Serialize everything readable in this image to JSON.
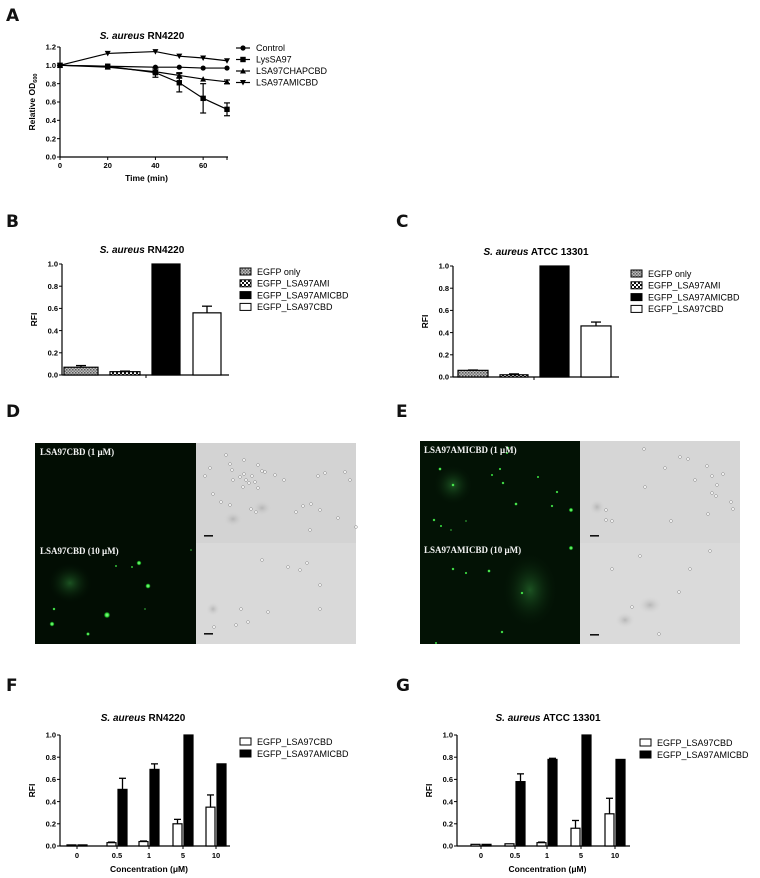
{
  "panels": {
    "A": {
      "letter": "A"
    },
    "B": {
      "letter": "B"
    },
    "C": {
      "letter": "C"
    },
    "D": {
      "letter": "D"
    },
    "E": {
      "letter": "E"
    },
    "F": {
      "letter": "F"
    },
    "G": {
      "letter": "G"
    }
  },
  "microscopy": {
    "D": {
      "top_label": "LSA97CBD (1 μM)",
      "bottom_label": "LSA97CBD (10 μM)"
    },
    "E": {
      "top_label": "LSA97AMICBD (1 μM)",
      "bottom_label": "LSA97AMICBD (10 μM)"
    }
  },
  "chart_data": [
    {
      "id": "A",
      "type": "line",
      "title_italic": "S. aureus",
      "title_rest": " RN4220",
      "xlabel": "Time (min)",
      "ylabel": "Relative OD600",
      "xlim": [
        0,
        70
      ],
      "ylim": [
        0,
        1.2
      ],
      "xticks": [
        0,
        20,
        40,
        60
      ],
      "yticks": [
        0.0,
        0.2,
        0.4,
        0.6,
        0.8,
        1.0,
        1.2
      ],
      "x": [
        0,
        20,
        40,
        50,
        60,
        70
      ],
      "series": [
        {
          "name": "Control",
          "marker": "circle",
          "values": [
            1.0,
            0.99,
            0.98,
            0.98,
            0.97,
            0.97
          ],
          "err": [
            0,
            0.01,
            0.01,
            0.01,
            0.01,
            0.01
          ]
        },
        {
          "name": "LysSA97",
          "marker": "square",
          "values": [
            1.0,
            0.99,
            0.92,
            0.81,
            0.64,
            0.52
          ],
          "err": [
            0,
            0.01,
            0.05,
            0.1,
            0.16,
            0.07
          ]
        },
        {
          "name": "LSA97CHAPCBD",
          "marker": "triangle-up",
          "values": [
            1.0,
            0.98,
            0.93,
            0.89,
            0.85,
            0.82
          ],
          "err": [
            0,
            0.01,
            0.02,
            0.03,
            0.01,
            0.02
          ]
        },
        {
          "name": "LSA97AMICBD",
          "marker": "triangle-down",
          "values": [
            1.0,
            1.13,
            1.15,
            1.1,
            1.08,
            1.05
          ],
          "err": [
            0,
            0.01,
            0.01,
            0.01,
            0.01,
            0.01
          ]
        }
      ]
    },
    {
      "id": "B",
      "type": "bar",
      "title_italic": "S. aureus",
      "title_rest": " RN4220",
      "ylabel": "RFI",
      "ylim": [
        0,
        1.0
      ],
      "yticks": [
        0.0,
        0.2,
        0.4,
        0.6,
        0.8,
        1.0
      ],
      "categories": [
        "EGFP only",
        "EGFP_LSA97AMI",
        "EGFP_LSA97AMICBD",
        "EGFP_LSA97CBD"
      ],
      "values": [
        0.07,
        0.03,
        1.0,
        0.56
      ],
      "err": [
        0.015,
        0.005,
        0,
        0.06
      ],
      "fills": [
        "hatch-gray",
        "checker",
        "black",
        "white"
      ]
    },
    {
      "id": "C",
      "type": "bar",
      "title_italic": "S. aureus",
      "title_rest": " ATCC 13301",
      "ylabel": "RFI",
      "ylim": [
        0,
        1.0
      ],
      "yticks": [
        0.0,
        0.2,
        0.4,
        0.6,
        0.8,
        1.0
      ],
      "categories": [
        "EGFP only",
        "EGFP_LSA97AMI",
        "EGFP_LSA97AMICBD",
        "EGFP_LSA97CBD"
      ],
      "values": [
        0.06,
        0.02,
        1.0,
        0.46
      ],
      "err": [
        0.003,
        0.008,
        0,
        0.035
      ],
      "fills": [
        "hatch-gray",
        "checker",
        "black",
        "white"
      ]
    },
    {
      "id": "F",
      "type": "bar",
      "title_italic": "S. aureus",
      "title_rest": " RN4220",
      "xlabel": "Concentration (μM)",
      "ylabel": "RFI",
      "ylim": [
        0,
        1.0
      ],
      "yticks": [
        0.0,
        0.2,
        0.4,
        0.6,
        0.8,
        1.0
      ],
      "categories": [
        "0",
        "0.5",
        "1",
        "5",
        "10"
      ],
      "series": [
        {
          "name": "EGFP_LSA97CBD",
          "fill": "white",
          "values": [
            0.01,
            0.03,
            0.04,
            0.2,
            0.35
          ],
          "err": [
            0,
            0.005,
            0.005,
            0.04,
            0.11
          ]
        },
        {
          "name": "EGFP_LSA97AMICBD",
          "fill": "black",
          "values": [
            0.01,
            0.51,
            0.69,
            1.0,
            0.74
          ],
          "err": [
            0,
            0.1,
            0.05,
            0,
            0
          ]
        }
      ]
    },
    {
      "id": "G",
      "type": "bar",
      "title_italic": "S. aureus",
      "title_rest": " ATCC 13301",
      "xlabel": "Concentration (μM)",
      "ylabel": "RFI",
      "ylim": [
        0,
        1.0
      ],
      "yticks": [
        0.0,
        0.2,
        0.4,
        0.6,
        0.8,
        1.0
      ],
      "categories": [
        "0",
        "0.5",
        "1",
        "5",
        "10"
      ],
      "series": [
        {
          "name": "EGFP_LSA97CBD",
          "fill": "white",
          "values": [
            0.015,
            0.02,
            0.03,
            0.16,
            0.29
          ],
          "err": [
            0,
            0.003,
            0.005,
            0.07,
            0.14
          ]
        },
        {
          "name": "EGFP_LSA97AMICBD",
          "fill": "black",
          "values": [
            0.015,
            0.58,
            0.78,
            1.0,
            0.78
          ],
          "err": [
            0,
            0.07,
            0.01,
            0,
            0
          ]
        }
      ]
    }
  ]
}
